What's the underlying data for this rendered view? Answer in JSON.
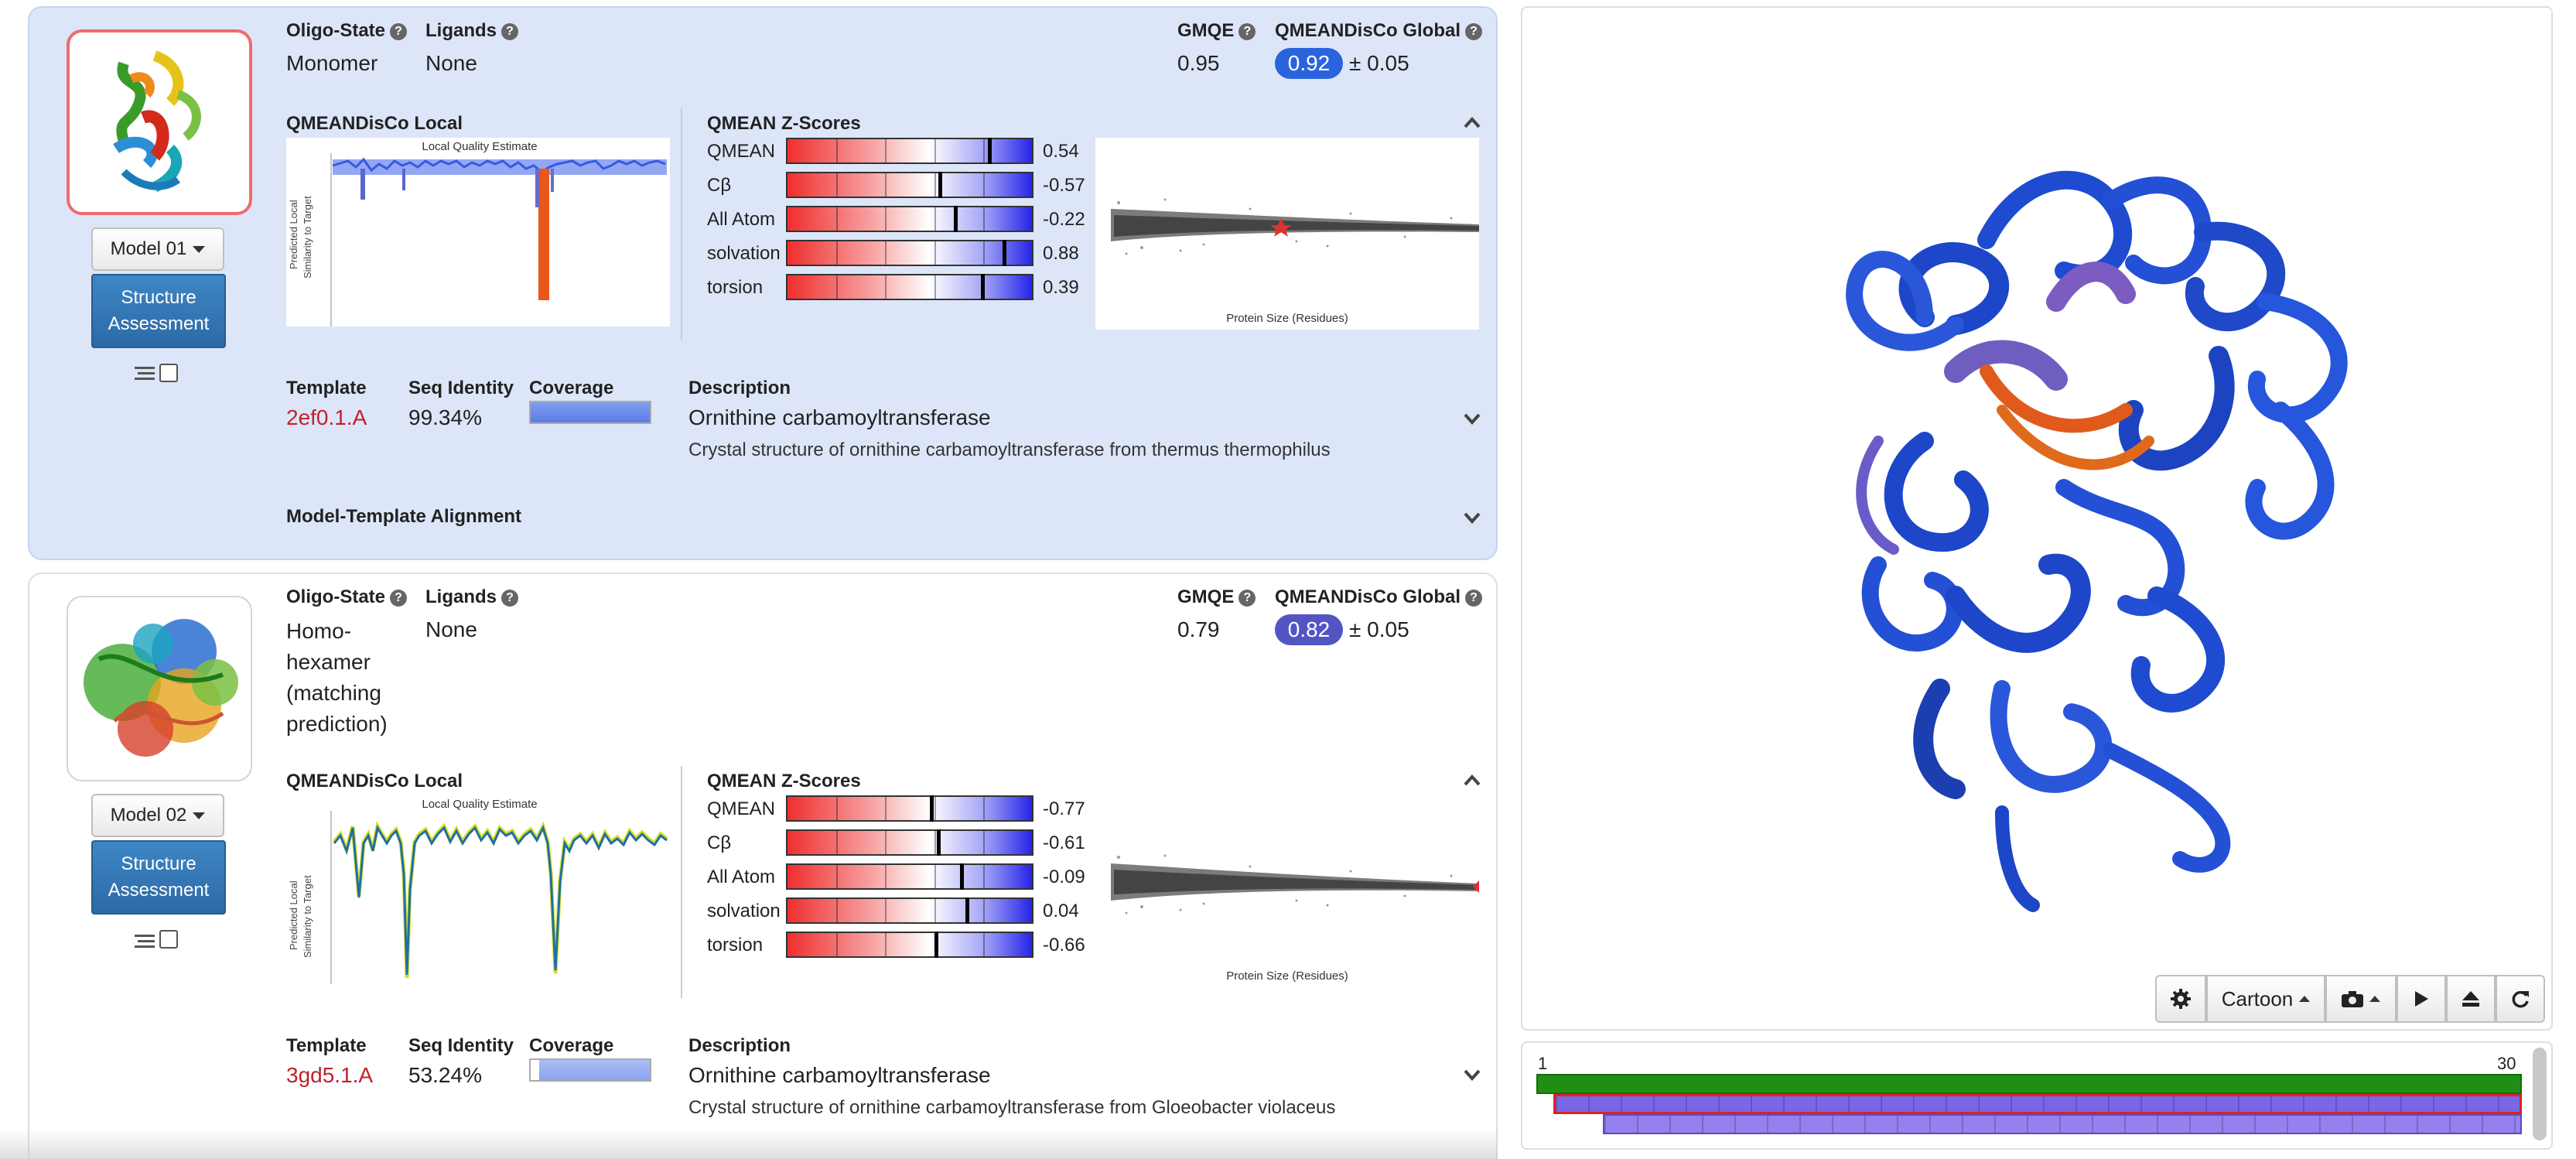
{
  "models": [
    {
      "dropdown_label": "Model 01",
      "assess_line1": "Structure",
      "assess_line2": "Assessment",
      "oligo_label": "Oligo-State",
      "oligo_value_lines": [
        "Monomer"
      ],
      "ligands_label": "Ligands",
      "ligands_value": "None",
      "gmqe_label": "GMQE",
      "gmqe_value": "0.95",
      "qmeandisco_label": "QMEANDisCo Global",
      "qmeandisco_value": "0.92",
      "qmeandisco_err": "± 0.05",
      "qmean_local_label": "QMEANDisCo Local",
      "lqe_title": "Local Quality Estimate",
      "lqe_ylabel_1": "Predicted Local",
      "lqe_ylabel_2": "Similarity to Target",
      "zscores_label": "QMEAN Z-Scores",
      "zscores": [
        {
          "name": "QMEAN",
          "value": "0.54",
          "num": 0.54
        },
        {
          "name": "Cβ",
          "value": "-0.57",
          "num": -0.57
        },
        {
          "name": "All Atom",
          "value": "-0.22",
          "num": -0.22
        },
        {
          "name": "solvation",
          "value": "0.88",
          "num": 0.88
        },
        {
          "name": "torsion",
          "value": "0.39",
          "num": 0.39
        }
      ],
      "scatter_xlabel": "Protein Size (Residues)",
      "template_label": "Template",
      "template_value": "2ef0.1.A",
      "seqid_label": "Seq Identity",
      "seqid_value": "99.34%",
      "coverage_label": "Coverage",
      "coverage_fraction": 1.0,
      "description_label": "Description",
      "description_title": "Ornithine carbamoyltransferase",
      "description_text": "Crystal structure of ornithine carbamoyltransferase from thermus thermophilus",
      "alignment_label": "Model-Template Alignment"
    },
    {
      "dropdown_label": "Model 02",
      "assess_line1": "Structure",
      "assess_line2": "Assessment",
      "oligo_label": "Oligo-State",
      "oligo_value_lines": [
        "Homo-",
        "hexamer",
        "(matching",
        "prediction)"
      ],
      "ligands_label": "Ligands",
      "ligands_value": "None",
      "gmqe_label": "GMQE",
      "gmqe_value": "0.79",
      "qmeandisco_label": "QMEANDisCo Global",
      "qmeandisco_value": "0.82",
      "qmeandisco_err": "± 0.05",
      "qmean_local_label": "QMEANDisCo Local",
      "lqe_title": "Local Quality Estimate",
      "lqe_ylabel_1": "Predicted Local",
      "lqe_ylabel_2": "Similarity to Target",
      "zscores_label": "QMEAN Z-Scores",
      "zscores": [
        {
          "name": "QMEAN",
          "value": "-0.77",
          "num": -0.77
        },
        {
          "name": "Cβ",
          "value": "-0.61",
          "num": -0.61
        },
        {
          "name": "All Atom",
          "value": "-0.09",
          "num": -0.09
        },
        {
          "name": "solvation",
          "value": "0.04",
          "num": 0.04
        },
        {
          "name": "torsion",
          "value": "-0.66",
          "num": -0.66
        }
      ],
      "scatter_xlabel": "Protein Size (Residues)",
      "template_label": "Template",
      "template_value": "3gd5.1.A",
      "seqid_label": "Seq Identity",
      "seqid_value": "53.24%",
      "coverage_label": "Coverage",
      "coverage_fraction": 0.93,
      "description_label": "Description",
      "description_title": "Ornithine carbamoyltransferase",
      "description_text": "Crystal structure of ornithine carbamoyltransferase from Gloeobacter violaceus"
    }
  ],
  "viewer": {
    "settings_icon": "gear-icon",
    "mode_label": "Cartoon",
    "snapshot_icon": "camera-icon",
    "play_icon": "play-icon",
    "eject_icon": "eject-icon",
    "reset_icon": "refresh-icon"
  },
  "sequence": {
    "start_label": "1",
    "end_label": "30"
  },
  "colors": {
    "active_card": "#dde6f8",
    "pill_model1": "#2a64dd",
    "pill_model2": "#5355c3",
    "template_link": "#c0212b",
    "seq_target": "#1f8f14",
    "seq_model": "#7a67e6"
  }
}
